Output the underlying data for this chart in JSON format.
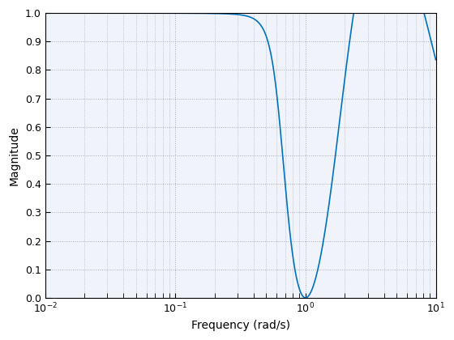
{
  "xlabel": "Frequency (rad/s)",
  "ylabel": "Magnitude",
  "xlim": [
    0.01,
    10
  ],
  "ylim": [
    0,
    1.0
  ],
  "line_color": "#0072BD",
  "line_width": 1.2,
  "bg_color": "#ffffff",
  "axes_bg_color": "#f0f4fa",
  "yticks": [
    0.0,
    0.1,
    0.2,
    0.3,
    0.4,
    0.5,
    0.6,
    0.7,
    0.8,
    0.9,
    1.0
  ],
  "grid_color": "#a0a8b8",
  "title": "",
  "figsize": [
    5.6,
    4.2
  ],
  "dpi": 100,
  "xlabel_fontsize": 10,
  "ylabel_fontsize": 10,
  "tick_fontsize": 9
}
